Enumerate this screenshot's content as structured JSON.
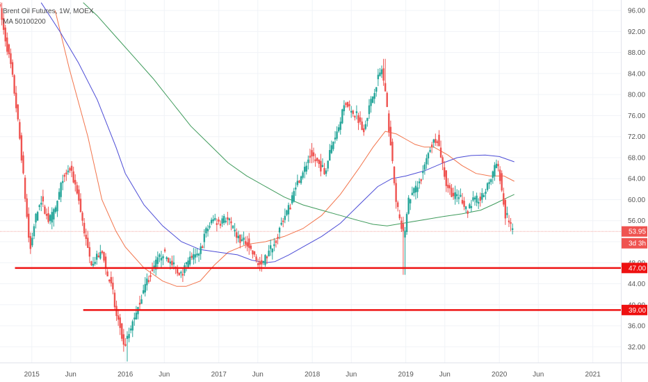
{
  "legend": {
    "title": "Brent Oil Futures, 1W, MOEX",
    "ma_label": "MA 50100200"
  },
  "colors": {
    "up": "#26a69a",
    "down": "#ef5350",
    "ma50": "#f2734a",
    "ma100": "#4b4bd6",
    "ma200": "#3d9a5a",
    "support": "#ee1111",
    "last_price": "#ef5350"
  },
  "chart_data": {
    "type": "candlestick",
    "title": "Brent Oil Futures, 1W, MOEX",
    "y_axis_side": "right",
    "ylim": [
      29,
      98
    ],
    "y_ticks": [
      32,
      36,
      40,
      44,
      48,
      52,
      56,
      60,
      64,
      68,
      72,
      76,
      80,
      84,
      88,
      92,
      96
    ],
    "y_tick_labels": [
      "32.00",
      "36.00",
      "40.00",
      "44.00",
      "48.00",
      "52.00",
      "56.00",
      "60.00",
      "64.00",
      "68.00",
      "72.00",
      "76.00",
      "80.00",
      "84.00",
      "88.00",
      "92.00",
      "96.00"
    ],
    "x_range": [
      2014.66,
      2021.3
    ],
    "x_ticks": [
      {
        "t": 2015.0,
        "label": "2015"
      },
      {
        "t": 2015.417,
        "label": "Jun"
      },
      {
        "t": 2016.0,
        "label": "2016"
      },
      {
        "t": 2016.417,
        "label": "Jun"
      },
      {
        "t": 2017.0,
        "label": "2017"
      },
      {
        "t": 2017.417,
        "label": "Jun"
      },
      {
        "t": 2018.0,
        "label": "2018"
      },
      {
        "t": 2018.417,
        "label": "Jun"
      },
      {
        "t": 2019.0,
        "label": "2019"
      },
      {
        "t": 2019.417,
        "label": "Jun"
      },
      {
        "t": 2020.0,
        "label": "2020"
      },
      {
        "t": 2020.417,
        "label": "Jun"
      },
      {
        "t": 2021.0,
        "label": "2021"
      }
    ],
    "price_path": [
      [
        2014.66,
        98
      ],
      [
        2014.72,
        92
      ],
      [
        2014.8,
        85
      ],
      [
        2014.85,
        78
      ],
      [
        2014.9,
        70
      ],
      [
        2014.95,
        60
      ],
      [
        2015.0,
        50
      ],
      [
        2015.05,
        56
      ],
      [
        2015.12,
        60
      ],
      [
        2015.2,
        56
      ],
      [
        2015.27,
        58
      ],
      [
        2015.35,
        64
      ],
      [
        2015.42,
        66
      ],
      [
        2015.5,
        62
      ],
      [
        2015.55,
        57
      ],
      [
        2015.6,
        52
      ],
      [
        2015.65,
        48
      ],
      [
        2015.72,
        49
      ],
      [
        2015.78,
        50
      ],
      [
        2015.82,
        46
      ],
      [
        2015.88,
        43
      ],
      [
        2015.92,
        38
      ],
      [
        2015.96,
        36
      ],
      [
        2016.0,
        32
      ],
      [
        2016.05,
        34
      ],
      [
        2016.12,
        38
      ],
      [
        2016.2,
        42
      ],
      [
        2016.28,
        46
      ],
      [
        2016.35,
        48
      ],
      [
        2016.42,
        50
      ],
      [
        2016.5,
        48
      ],
      [
        2016.58,
        46
      ],
      [
        2016.65,
        47
      ],
      [
        2016.72,
        49
      ],
      [
        2016.8,
        49
      ],
      [
        2016.88,
        54
      ],
      [
        2016.95,
        56
      ],
      [
        2017.02,
        56
      ],
      [
        2017.1,
        56.5
      ],
      [
        2017.18,
        54
      ],
      [
        2017.25,
        52
      ],
      [
        2017.32,
        52
      ],
      [
        2017.4,
        49
      ],
      [
        2017.47,
        47.5
      ],
      [
        2017.55,
        50
      ],
      [
        2017.62,
        52
      ],
      [
        2017.7,
        56
      ],
      [
        2017.78,
        59
      ],
      [
        2017.85,
        63
      ],
      [
        2017.92,
        65
      ],
      [
        2018.0,
        69
      ],
      [
        2018.08,
        67
      ],
      [
        2018.15,
        65
      ],
      [
        2018.22,
        70
      ],
      [
        2018.3,
        74
      ],
      [
        2018.38,
        79
      ],
      [
        2018.44,
        76
      ],
      [
        2018.5,
        76
      ],
      [
        2018.56,
        73
      ],
      [
        2018.62,
        77
      ],
      [
        2018.7,
        82
      ],
      [
        2018.76,
        85
      ],
      [
        2018.8,
        80
      ],
      [
        2018.86,
        70
      ],
      [
        2018.9,
        62
      ],
      [
        2018.95,
        56
      ],
      [
        2019.0,
        53
      ],
      [
        2019.05,
        60
      ],
      [
        2019.12,
        62
      ],
      [
        2019.2,
        65
      ],
      [
        2019.28,
        70
      ],
      [
        2019.35,
        72
      ],
      [
        2019.4,
        68
      ],
      [
        2019.45,
        63
      ],
      [
        2019.52,
        61
      ],
      [
        2019.6,
        60
      ],
      [
        2019.68,
        58
      ],
      [
        2019.75,
        60
      ],
      [
        2019.82,
        60
      ],
      [
        2019.88,
        62
      ],
      [
        2019.95,
        65
      ],
      [
        2019.99,
        67
      ],
      [
        2020.03,
        64
      ],
      [
        2020.08,
        57
      ],
      [
        2020.12,
        56
      ],
      [
        2020.16,
        54
      ]
    ],
    "wick_extremes": [
      {
        "t": 2018.98,
        "low": 45.7
      },
      {
        "t": 2018.77,
        "high": 86.8
      },
      {
        "t": 2016.02,
        "low": 29.2
      },
      {
        "t": 2014.68,
        "high": 97.5
      }
    ],
    "series": [
      {
        "name": "MA 50",
        "key": "ma50",
        "points": [
          [
            2015.25,
            96
          ],
          [
            2015.4,
            85
          ],
          [
            2015.6,
            72
          ],
          [
            2015.75,
            60
          ],
          [
            2015.9,
            54
          ],
          [
            2016.0,
            51
          ],
          [
            2016.2,
            47
          ],
          [
            2016.4,
            44.5
          ],
          [
            2016.55,
            43.5
          ],
          [
            2016.65,
            43.5
          ],
          [
            2016.8,
            44.5
          ],
          [
            2016.95,
            47.5
          ],
          [
            2017.1,
            50
          ],
          [
            2017.3,
            51.5
          ],
          [
            2017.5,
            52
          ],
          [
            2017.7,
            53
          ],
          [
            2017.9,
            54.5
          ],
          [
            2018.1,
            57
          ],
          [
            2018.3,
            61
          ],
          [
            2018.5,
            66
          ],
          [
            2018.65,
            70
          ],
          [
            2018.78,
            73
          ],
          [
            2018.9,
            72.5
          ],
          [
            2019.0,
            71.5
          ],
          [
            2019.1,
            70.5
          ],
          [
            2019.2,
            70
          ],
          [
            2019.3,
            70
          ],
          [
            2019.45,
            68.5
          ],
          [
            2019.6,
            66.5
          ],
          [
            2019.75,
            65
          ],
          [
            2019.9,
            64.5
          ],
          [
            2020.05,
            64.5
          ],
          [
            2020.16,
            63.5
          ]
        ]
      },
      {
        "name": "MA 100",
        "key": "ma100",
        "points": [
          [
            2015.1,
            97.5
          ],
          [
            2015.3,
            92
          ],
          [
            2015.5,
            86
          ],
          [
            2015.7,
            79
          ],
          [
            2015.9,
            70
          ],
          [
            2016.0,
            65
          ],
          [
            2016.2,
            59
          ],
          [
            2016.4,
            55
          ],
          [
            2016.6,
            52
          ],
          [
            2016.8,
            50.5
          ],
          [
            2017.0,
            50
          ],
          [
            2017.2,
            49.5
          ],
          [
            2017.35,
            48.5
          ],
          [
            2017.5,
            48
          ],
          [
            2017.6,
            48.2
          ],
          [
            2017.75,
            49.5
          ],
          [
            2017.9,
            51
          ],
          [
            2018.1,
            53
          ],
          [
            2018.3,
            55.5
          ],
          [
            2018.5,
            59
          ],
          [
            2018.7,
            62.5
          ],
          [
            2018.85,
            64
          ],
          [
            2019.0,
            64.5
          ],
          [
            2019.2,
            65.5
          ],
          [
            2019.4,
            67
          ],
          [
            2019.55,
            68
          ],
          [
            2019.7,
            68.4
          ],
          [
            2019.85,
            68.5
          ],
          [
            2020.0,
            68.2
          ],
          [
            2020.16,
            67.2
          ]
        ]
      },
      {
        "name": "MA 200",
        "key": "ma200",
        "points": [
          [
            2015.55,
            97.5
          ],
          [
            2015.7,
            95
          ],
          [
            2015.9,
            91
          ],
          [
            2016.1,
            87
          ],
          [
            2016.3,
            83
          ],
          [
            2016.5,
            78.5
          ],
          [
            2016.7,
            74
          ],
          [
            2016.9,
            70.5
          ],
          [
            2017.1,
            67
          ],
          [
            2017.3,
            64.5
          ],
          [
            2017.5,
            62.5
          ],
          [
            2017.7,
            60.5
          ],
          [
            2017.9,
            59
          ],
          [
            2018.1,
            58
          ],
          [
            2018.3,
            57
          ],
          [
            2018.5,
            56
          ],
          [
            2018.65,
            55.3
          ],
          [
            2018.8,
            55
          ],
          [
            2019.0,
            55.6
          ],
          [
            2019.2,
            56.2
          ],
          [
            2019.4,
            56.8
          ],
          [
            2019.6,
            57.3
          ],
          [
            2019.8,
            58
          ],
          [
            2019.95,
            59.2
          ],
          [
            2020.1,
            60.5
          ],
          [
            2020.16,
            61
          ]
        ]
      }
    ],
    "horizontal_lines": [
      {
        "value": 47,
        "label": "47.00",
        "t_start": 2014.82
      },
      {
        "value": 39,
        "label": "39.00",
        "t_start": 2015.55
      }
    ],
    "last_price": {
      "value": 53.95,
      "label": "53.95",
      "countdown": "3d 3h"
    }
  }
}
